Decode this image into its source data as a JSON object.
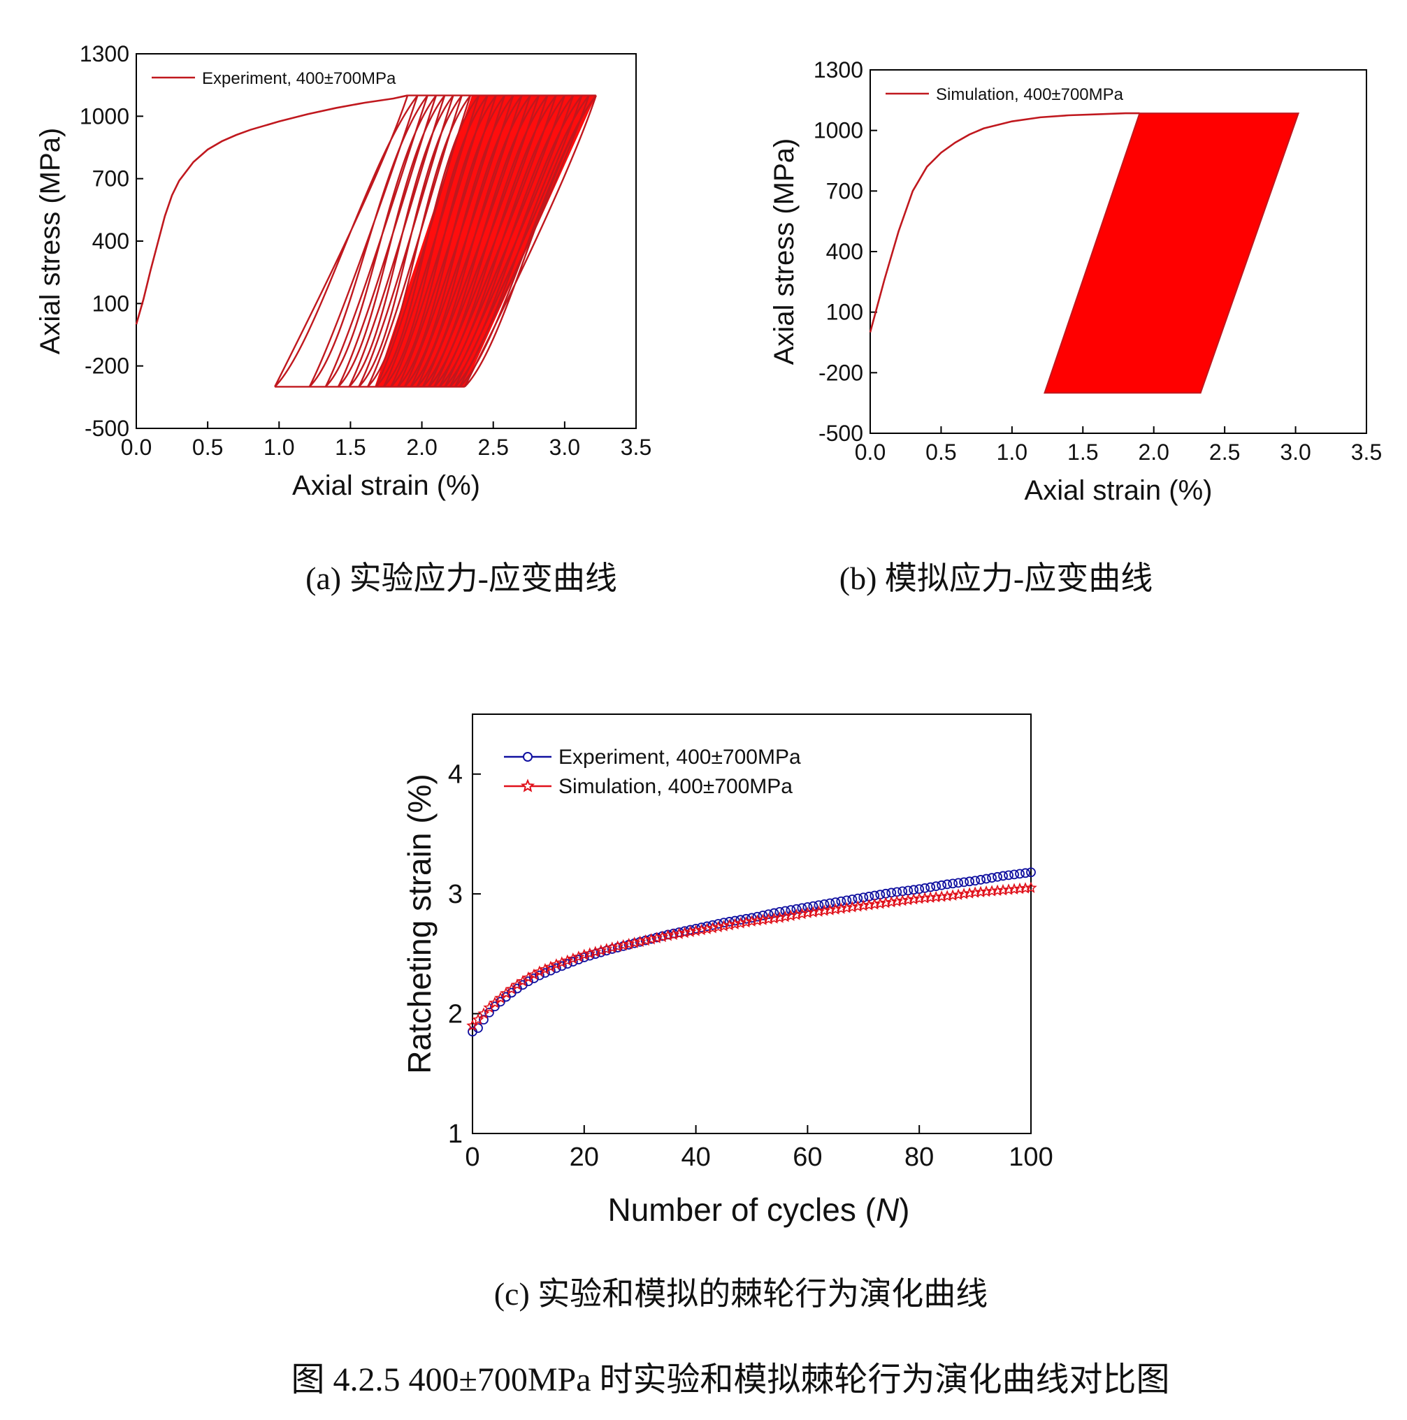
{
  "figure_caption": "图 4.2.5 400±700MPa 时实验和模拟棘轮行为演化曲线对比图",
  "colors": {
    "experiment_line": "#c0181e",
    "red_fill": "#ff0000",
    "exp_marker": "#1010a0",
    "sim_marker": "#e0101a",
    "axis": "#000000"
  },
  "chart_data": [
    {
      "type": "line",
      "caption": "(a) 实验应力-应变曲线",
      "xlabel": "Axial strain (%)",
      "ylabel": "Axial stress (MPa)",
      "xlim": [
        0.0,
        3.5
      ],
      "ylim": [
        -500,
        1300
      ],
      "xticks": [
        "0.0",
        "0.5",
        "1.0",
        "1.5",
        "2.0",
        "2.5",
        "3.0",
        "3.5"
      ],
      "yticks": [
        "-500",
        "-200",
        "100",
        "400",
        "700",
        "1000",
        "1300"
      ],
      "legend": {
        "label": "Experiment, 400±700MPa",
        "placement": "top-left"
      },
      "series": [
        {
          "name": "Experiment, 400±700MPa",
          "loading_curve": {
            "x": [
              0.0,
              0.05,
              0.1,
              0.15,
              0.2,
              0.25,
              0.3,
              0.4,
              0.5,
              0.6,
              0.7,
              0.8,
              1.0,
              1.2,
              1.4,
              1.6,
              1.8,
              1.9
            ],
            "y": [
              0,
              120,
              260,
              390,
              520,
              620,
              690,
              780,
              840,
              880,
              910,
              935,
              975,
              1010,
              1040,
              1065,
              1085,
              1100
            ]
          },
          "stress_max": 1100,
          "stress_min": -300,
          "cycles": 100,
          "ratchet_peak_strain": [
            1.9,
            1.97,
            2.04,
            2.1,
            2.16,
            2.22,
            2.28,
            2.34,
            2.4,
            2.46,
            2.52,
            2.58,
            2.64,
            2.7,
            2.76,
            2.82,
            2.88,
            2.94,
            3.0,
            3.06,
            3.12,
            3.17,
            3.22
          ],
          "first_valley_strain": 0.97,
          "last_valley_strain": 2.3
        }
      ]
    },
    {
      "type": "line",
      "caption": "(b) 模拟应力-应变曲线",
      "xlabel": "Axial strain (%)",
      "ylabel": "Axial stress (MPa)",
      "xlim": [
        0.0,
        3.5
      ],
      "ylim": [
        -500,
        1300
      ],
      "xticks": [
        "0.0",
        "0.5",
        "1.0",
        "1.5",
        "2.0",
        "2.5",
        "3.0",
        "3.5"
      ],
      "yticks": [
        "-500",
        "-200",
        "100",
        "400",
        "700",
        "1000",
        "1300"
      ],
      "legend": {
        "label": "Simulation, 400±700MPa",
        "placement": "top-left"
      },
      "series": [
        {
          "name": "Simulation, 400±700MPa",
          "loading_curve": {
            "x": [
              0.0,
              0.05,
              0.1,
              0.2,
              0.3,
              0.4,
              0.5,
              0.6,
              0.7,
              0.8,
              1.0,
              1.2,
              1.4,
              1.6,
              1.8,
              1.9
            ],
            "y": [
              0,
              130,
              260,
              500,
              700,
              820,
              890,
              940,
              980,
              1010,
              1045,
              1065,
              1075,
              1080,
              1085,
              1085
            ]
          },
          "stress_max": 1085,
          "stress_min": -300,
          "loop_band": {
            "top_left": 1.9,
            "top_right": 3.02,
            "bottom_left": 1.23,
            "bottom_right": 2.33
          }
        }
      ]
    },
    {
      "type": "scatter",
      "caption": "(c) 实验和模拟的棘轮行为演化曲线",
      "xlabel": "Number of cycles (N)",
      "xlabel_plain": "Number of cycles (",
      "xlabel_italic": "N",
      "xlabel_close": ")",
      "ylabel": "Ratcheting strain (%)",
      "xlim": [
        0,
        100
      ],
      "ylim": [
        1,
        4.5
      ],
      "xticks": [
        "0",
        "20",
        "40",
        "60",
        "80",
        "100"
      ],
      "yticks": [
        "1",
        "2",
        "3",
        "4"
      ],
      "legend_placement": "top-left",
      "series": [
        {
          "name": "Experiment, 400±700MPa",
          "marker": "circle",
          "x": [
            0,
            1,
            2,
            3,
            4,
            5,
            6,
            8,
            10,
            12,
            15,
            20,
            25,
            30,
            35,
            40,
            45,
            50,
            55,
            60,
            65,
            70,
            75,
            80,
            85,
            90,
            95,
            100
          ],
          "y": [
            1.85,
            1.88,
            1.95,
            2.01,
            2.06,
            2.1,
            2.14,
            2.21,
            2.27,
            2.32,
            2.38,
            2.47,
            2.54,
            2.6,
            2.66,
            2.71,
            2.76,
            2.8,
            2.85,
            2.89,
            2.93,
            2.97,
            3.01,
            3.04,
            3.08,
            3.11,
            3.15,
            3.18
          ]
        },
        {
          "name": "Simulation, 400±700MPa",
          "marker": "star",
          "x": [
            0,
            1,
            2,
            3,
            4,
            5,
            6,
            8,
            10,
            12,
            15,
            20,
            25,
            30,
            35,
            40,
            45,
            50,
            55,
            60,
            65,
            70,
            75,
            80,
            85,
            90,
            95,
            100
          ],
          "y": [
            1.9,
            1.95,
            2.0,
            2.05,
            2.09,
            2.13,
            2.17,
            2.24,
            2.3,
            2.35,
            2.41,
            2.49,
            2.55,
            2.6,
            2.65,
            2.69,
            2.73,
            2.77,
            2.8,
            2.84,
            2.87,
            2.9,
            2.93,
            2.96,
            2.98,
            3.01,
            3.03,
            3.05
          ]
        }
      ]
    }
  ]
}
